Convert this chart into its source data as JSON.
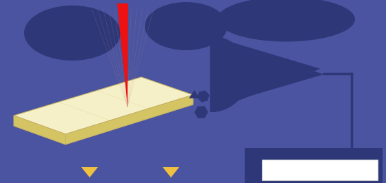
{
  "bg_color": "#4a54a0",
  "chip_face_color": "#f5f0c8",
  "chip_edge_color": "#c8b464",
  "chip_side_color": "#d4c464",
  "laser_color": "#ee1111",
  "circuit_color": "#2e3878",
  "triangle_color": "#f0c040",
  "white_box_color": "#ffffff",
  "white_box_edge": "#cccccc"
}
